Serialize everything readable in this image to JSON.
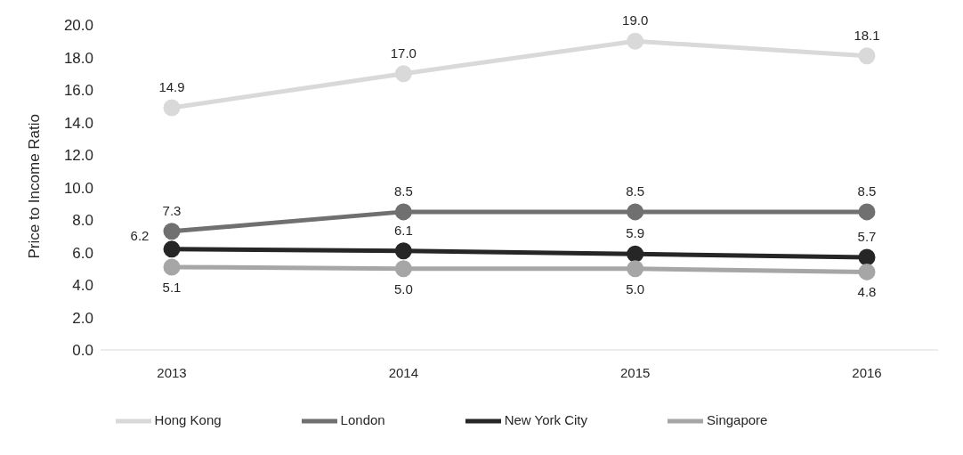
{
  "chart_data": {
    "type": "line",
    "ylabel": "Price to Income Ratio",
    "categories": [
      "2013",
      "2014",
      "2015",
      "2016"
    ],
    "series": [
      {
        "name": "Hong Kong",
        "color": "#d9d9d9",
        "values": [
          14.9,
          17.0,
          19.0,
          18.1
        ],
        "value_labels": [
          "14.9",
          "17.0",
          "19.0",
          "18.1"
        ]
      },
      {
        "name": "London",
        "color": "#707070",
        "values": [
          7.3,
          8.5,
          8.5,
          8.5
        ],
        "value_labels": [
          "7.3",
          "8.5",
          "8.5",
          "8.5"
        ]
      },
      {
        "name": "New York City",
        "color": "#262626",
        "values": [
          6.2,
          6.1,
          5.9,
          5.7
        ],
        "value_labels": [
          "6.2",
          "6.1",
          "5.9",
          "5.7"
        ]
      },
      {
        "name": "Singapore",
        "color": "#a6a6a6",
        "values": [
          5.1,
          5.0,
          5.0,
          4.8
        ],
        "value_labels": [
          "5.1",
          "5.0",
          "5.0",
          "4.8"
        ]
      }
    ],
    "ylim": [
      0,
      20
    ],
    "yticks": [
      {
        "value": 0,
        "label": "0.0"
      },
      {
        "value": 2,
        "label": "2.0"
      },
      {
        "value": 4,
        "label": "4.0"
      },
      {
        "value": 6,
        "label": "6.0"
      },
      {
        "value": 8,
        "label": "8.0"
      },
      {
        "value": 10,
        "label": "10.0"
      },
      {
        "value": 12,
        "label": "12.0"
      },
      {
        "value": 14,
        "label": "14.0"
      },
      {
        "value": 16,
        "label": "16.0"
      },
      {
        "value": 18,
        "label": "18.0"
      },
      {
        "value": 20,
        "label": "20.0"
      }
    ],
    "grid": false,
    "legend": "bottom",
    "marker": "circle",
    "line_style": "solid"
  }
}
